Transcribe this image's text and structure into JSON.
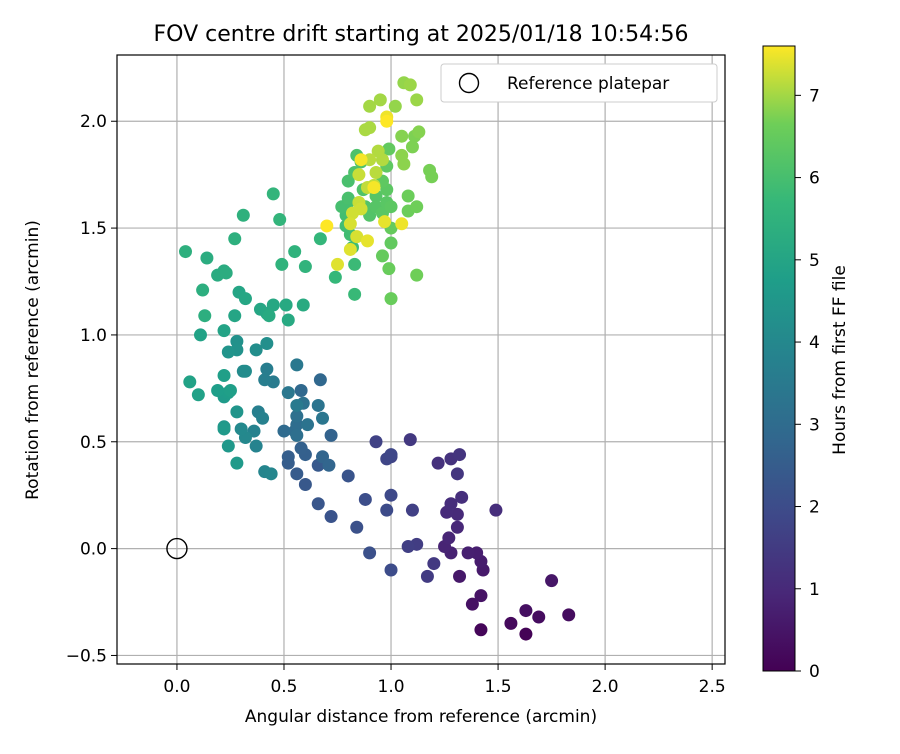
{
  "chart_data": {
    "type": "scatter",
    "title": "FOV centre drift starting at 2025/01/18 10:54:56",
    "xlabel": "Angular distance from reference (arcmin)",
    "ylabel": "Rotation from reference (arcmin)",
    "xlim": [
      -0.28,
      2.56
    ],
    "ylim": [
      -0.54,
      2.31
    ],
    "xticks": [
      0.0,
      0.5,
      1.0,
      1.5,
      2.0,
      2.5
    ],
    "xtick_labels": [
      "0.0",
      "0.5",
      "1.0",
      "1.5",
      "2.0",
      "2.5"
    ],
    "yticks": [
      -0.5,
      0.0,
      0.5,
      1.0,
      1.5,
      2.0
    ],
    "ytick_labels": [
      "−0.5",
      "0.0",
      "0.5",
      "1.0",
      "1.5",
      "2.0"
    ],
    "grid": true,
    "colormap": "viridis",
    "colorbar": {
      "label": "Hours from first FF file",
      "range": [
        0,
        7.6
      ],
      "ticks": [
        0,
        1,
        2,
        3,
        4,
        5,
        6,
        7
      ],
      "tick_labels": [
        "0",
        "1",
        "2",
        "3",
        "4",
        "5",
        "6",
        "7"
      ]
    },
    "legend": {
      "position": "top-right",
      "entries": [
        {
          "label": "Reference platepar",
          "marker": "open-circle"
        }
      ]
    },
    "reference_point": {
      "x": 0.0,
      "y": 0.0
    },
    "series": [
      {
        "values": [
          [
            1.63,
            -0.4,
            0.05
          ],
          [
            1.42,
            -0.38,
            0.12
          ],
          [
            1.56,
            -0.35,
            0.2
          ],
          [
            1.69,
            -0.32,
            0.28
          ],
          [
            1.83,
            -0.31,
            0.3
          ],
          [
            1.63,
            -0.29,
            0.35
          ],
          [
            1.38,
            -0.26,
            0.4
          ],
          [
            1.42,
            -0.22,
            0.45
          ],
          [
            1.75,
            -0.15,
            0.5
          ],
          [
            1.32,
            -0.13,
            0.55
          ],
          [
            1.43,
            -0.1,
            0.6
          ],
          [
            1.42,
            -0.06,
            0.65
          ],
          [
            1.4,
            -0.02,
            0.7
          ],
          [
            1.36,
            -0.02,
            0.75
          ],
          [
            1.28,
            -0.02,
            0.8
          ],
          [
            1.25,
            0.01,
            0.85
          ],
          [
            1.27,
            0.05,
            0.9
          ],
          [
            1.31,
            0.1,
            0.95
          ],
          [
            1.31,
            0.16,
            1.0
          ],
          [
            1.26,
            0.17,
            1.05
          ],
          [
            1.28,
            0.21,
            1.1
          ],
          [
            1.49,
            0.18,
            1.12
          ],
          [
            1.33,
            0.24,
            1.15
          ],
          [
            1.22,
            0.4,
            1.2
          ],
          [
            1.28,
            0.42,
            1.25
          ],
          [
            1.32,
            0.44,
            1.3
          ],
          [
            1.31,
            0.35,
            1.35
          ],
          [
            1.09,
            0.51,
            1.4
          ],
          [
            1.2,
            -0.07,
            1.45
          ],
          [
            1.17,
            -0.13,
            1.5
          ],
          [
            1.12,
            0.02,
            1.55
          ],
          [
            1.08,
            0.01,
            1.6
          ],
          [
            1.1,
            0.18,
            1.65
          ],
          [
            0.93,
            0.5,
            1.7
          ],
          [
            1.0,
            0.43,
            1.75
          ],
          [
            0.98,
            0.42,
            1.8
          ],
          [
            1.0,
            0.44,
            1.85
          ],
          [
            1.0,
            0.25,
            1.9
          ],
          [
            0.98,
            0.18,
            1.95
          ],
          [
            1.0,
            -0.1,
            2.0
          ],
          [
            0.88,
            0.23,
            2.05
          ],
          [
            0.9,
            -0.02,
            2.1
          ],
          [
            0.84,
            0.1,
            2.15
          ],
          [
            0.72,
            0.15,
            2.2
          ],
          [
            0.8,
            0.34,
            2.25
          ],
          [
            0.66,
            0.21,
            2.3
          ],
          [
            0.6,
            0.3,
            2.35
          ],
          [
            0.66,
            0.39,
            2.4
          ],
          [
            0.56,
            0.35,
            2.45
          ],
          [
            0.52,
            0.4,
            2.5
          ],
          [
            0.52,
            0.43,
            2.55
          ],
          [
            0.6,
            0.44,
            2.6
          ],
          [
            0.58,
            0.47,
            2.65
          ],
          [
            0.72,
            0.53,
            2.7
          ],
          [
            0.68,
            0.43,
            2.75
          ],
          [
            0.71,
            0.39,
            2.8
          ],
          [
            0.67,
            0.79,
            2.85
          ],
          [
            0.58,
            0.74,
            2.9
          ],
          [
            0.5,
            0.55,
            2.95
          ],
          [
            0.55,
            0.55,
            3.0
          ],
          [
            0.56,
            0.58,
            3.05
          ],
          [
            0.56,
            0.53,
            3.1
          ],
          [
            0.56,
            0.62,
            3.15
          ],
          [
            0.59,
            0.68,
            3.2
          ],
          [
            0.61,
            0.58,
            3.25
          ],
          [
            0.66,
            0.67,
            3.3
          ],
          [
            0.68,
            0.61,
            3.35
          ],
          [
            0.52,
            0.73,
            3.4
          ],
          [
            0.56,
            0.86,
            3.45
          ],
          [
            0.56,
            0.67,
            3.5
          ],
          [
            0.45,
            0.78,
            3.55
          ],
          [
            0.42,
            0.84,
            3.6
          ],
          [
            0.41,
            0.79,
            3.65
          ],
          [
            0.38,
            0.64,
            3.7
          ],
          [
            0.4,
            0.61,
            3.75
          ],
          [
            0.36,
            0.55,
            3.8
          ],
          [
            0.37,
            0.48,
            3.85
          ],
          [
            0.41,
            0.36,
            3.9
          ],
          [
            0.44,
            0.35,
            3.95
          ],
          [
            0.32,
            0.52,
            4.0
          ],
          [
            0.3,
            0.56,
            4.05
          ],
          [
            0.31,
            0.83,
            4.1
          ],
          [
            0.32,
            0.83,
            4.15
          ],
          [
            0.37,
            0.93,
            4.2
          ],
          [
            0.42,
            0.96,
            4.25
          ],
          [
            0.28,
            0.97,
            4.3
          ],
          [
            0.28,
            0.93,
            4.35
          ],
          [
            0.24,
            0.92,
            4.4
          ],
          [
            0.28,
            0.64,
            4.45
          ],
          [
            0.22,
            0.57,
            4.5
          ],
          [
            0.24,
            0.48,
            4.55
          ],
          [
            0.28,
            0.4,
            4.6
          ],
          [
            0.22,
            0.56,
            4.6
          ],
          [
            0.22,
            0.71,
            4.65
          ],
          [
            0.24,
            0.73,
            4.7
          ],
          [
            0.19,
            0.74,
            4.75
          ],
          [
            0.25,
            0.74,
            4.8
          ],
          [
            0.22,
            0.81,
            4.8
          ],
          [
            0.1,
            0.72,
            4.85
          ],
          [
            0.06,
            0.78,
            4.9
          ],
          [
            0.11,
            1.0,
            4.9
          ],
          [
            0.22,
            1.02,
            4.95
          ],
          [
            0.27,
            1.09,
            5.0
          ],
          [
            0.29,
            1.2,
            5.0
          ],
          [
            0.32,
            1.17,
            5.05
          ],
          [
            0.39,
            1.12,
            5.05
          ],
          [
            0.42,
            1.1,
            5.1
          ],
          [
            0.45,
            1.14,
            5.1
          ],
          [
            0.52,
            1.07,
            5.15
          ],
          [
            0.51,
            1.14,
            5.15
          ],
          [
            0.59,
            1.14,
            5.2
          ],
          [
            0.43,
            1.09,
            5.2
          ],
          [
            0.22,
            1.3,
            5.25
          ],
          [
            0.19,
            1.28,
            5.25
          ],
          [
            0.23,
            1.29,
            5.3
          ],
          [
            0.14,
            1.36,
            5.3
          ],
          [
            0.12,
            1.21,
            5.35
          ],
          [
            0.13,
            1.09,
            5.35
          ],
          [
            0.04,
            1.39,
            5.4
          ],
          [
            0.27,
            1.45,
            5.4
          ],
          [
            0.31,
            1.56,
            5.45
          ],
          [
            0.49,
            1.33,
            5.5
          ],
          [
            0.55,
            1.39,
            5.5
          ],
          [
            0.6,
            1.32,
            5.55
          ],
          [
            0.45,
            1.66,
            5.6
          ],
          [
            0.48,
            1.54,
            5.6
          ],
          [
            0.67,
            1.45,
            5.65
          ],
          [
            0.74,
            1.27,
            5.7
          ],
          [
            0.83,
            1.19,
            5.75
          ],
          [
            0.83,
            1.33,
            5.8
          ],
          [
            0.82,
            1.41,
            5.85
          ],
          [
            0.81,
            1.47,
            5.9
          ],
          [
            0.79,
            1.51,
            5.9
          ],
          [
            0.79,
            1.56,
            5.95
          ],
          [
            0.8,
            1.62,
            6.0
          ],
          [
            0.77,
            1.6,
            6.0
          ],
          [
            0.8,
            1.64,
            6.05
          ],
          [
            0.8,
            1.72,
            6.05
          ],
          [
            0.83,
            1.76,
            6.1
          ],
          [
            0.84,
            1.84,
            6.1
          ],
          [
            0.86,
            1.81,
            6.15
          ],
          [
            0.87,
            1.68,
            6.15
          ],
          [
            0.88,
            1.6,
            6.2
          ],
          [
            0.9,
            1.56,
            6.2
          ],
          [
            0.93,
            1.6,
            6.25
          ],
          [
            0.93,
            1.65,
            6.25
          ],
          [
            0.96,
            1.57,
            6.3
          ],
          [
            0.98,
            1.62,
            6.3
          ],
          [
            1.0,
            1.6,
            6.35
          ],
          [
            0.98,
            1.68,
            6.35
          ],
          [
            0.96,
            1.72,
            6.4
          ],
          [
            0.98,
            1.79,
            6.4
          ],
          [
            0.99,
            1.87,
            6.45
          ],
          [
            1.0,
            1.43,
            6.45
          ],
          [
            1.0,
            1.5,
            6.5
          ],
          [
            0.96,
            1.37,
            6.5
          ],
          [
            0.99,
            1.31,
            6.55
          ],
          [
            1.0,
            1.17,
            6.55
          ],
          [
            1.08,
            1.58,
            6.6
          ],
          [
            1.08,
            1.65,
            6.6
          ],
          [
            1.12,
            1.6,
            6.65
          ],
          [
            1.12,
            1.28,
            6.65
          ],
          [
            1.18,
            1.77,
            6.7
          ],
          [
            1.19,
            1.74,
            6.7
          ],
          [
            1.1,
            1.88,
            6.75
          ],
          [
            1.11,
            1.93,
            6.75
          ],
          [
            1.13,
            1.95,
            6.8
          ],
          [
            1.05,
            1.93,
            6.8
          ],
          [
            1.05,
            1.84,
            6.85
          ],
          [
            1.06,
            1.8,
            6.85
          ],
          [
            1.02,
            2.07,
            6.9
          ],
          [
            1.06,
            2.18,
            6.9
          ],
          [
            1.09,
            2.17,
            6.95
          ],
          [
            1.12,
            2.1,
            6.95
          ],
          [
            0.95,
            2.1,
            7.0
          ],
          [
            0.9,
            2.07,
            7.0
          ],
          [
            0.9,
            1.97,
            7.05
          ],
          [
            0.88,
            1.96,
            7.05
          ],
          [
            0.94,
            1.86,
            7.1
          ],
          [
            0.96,
            1.82,
            7.1
          ],
          [
            0.93,
            1.76,
            7.15
          ],
          [
            0.9,
            1.82,
            7.15
          ],
          [
            0.92,
            1.7,
            7.2
          ],
          [
            0.89,
            1.69,
            7.2
          ],
          [
            0.85,
            1.75,
            7.25
          ],
          [
            0.85,
            1.62,
            7.25
          ],
          [
            0.86,
            1.59,
            7.3
          ],
          [
            0.82,
            1.57,
            7.3
          ],
          [
            0.81,
            1.52,
            7.35
          ],
          [
            0.84,
            1.46,
            7.35
          ],
          [
            0.81,
            1.4,
            7.4
          ],
          [
            0.75,
            1.33,
            7.4
          ],
          [
            0.89,
            1.44,
            7.45
          ],
          [
            0.97,
            1.53,
            7.45
          ],
          [
            1.05,
            1.52,
            7.5
          ],
          [
            0.98,
            2.02,
            7.5
          ],
          [
            0.86,
            1.82,
            7.55
          ],
          [
            0.92,
            1.69,
            7.55
          ],
          [
            0.7,
            1.51,
            7.6
          ],
          [
            0.98,
            2.0,
            7.6
          ]
        ]
      }
    ]
  }
}
